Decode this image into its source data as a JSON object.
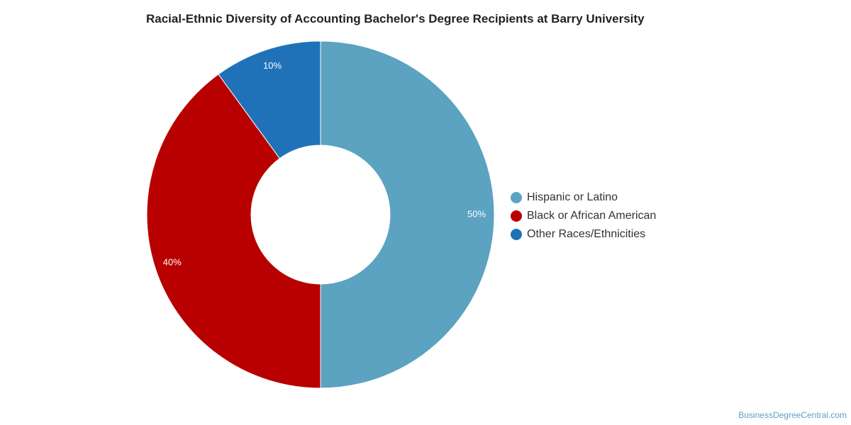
{
  "title": "Racial-Ethnic Diversity of Accounting Bachelor's Degree Recipients at Barry University",
  "watermark": "BusinessDegreeCentral.com",
  "chart_data": {
    "type": "pie",
    "variant": "donut",
    "title": "Racial-Ethnic Diversity of Accounting Bachelor's Degree Recipients at Barry University",
    "legend_position": "right",
    "slices": [
      {
        "label": "Hispanic or Latino",
        "value": 50,
        "display": "50%",
        "color": "#5ba3c0"
      },
      {
        "label": "Black or African American",
        "value": 40,
        "display": "40%",
        "color": "#b80000"
      },
      {
        "label": "Other Races/Ethnicities",
        "value": 10,
        "display": "10%",
        "color": "#1f72b8"
      }
    ]
  }
}
